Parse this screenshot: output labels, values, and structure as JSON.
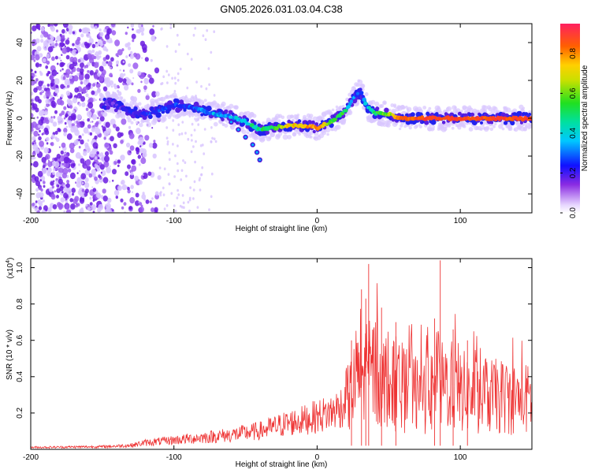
{
  "title": "GN05.2026.031.03.04.C38",
  "chart_data": [
    {
      "type": "heatmap",
      "xlabel": "Height of straight line (km)",
      "ylabel": "Frequency (Hz)",
      "xlim": [
        -200,
        150
      ],
      "ylim": [
        -50,
        50
      ],
      "xticks": [
        -200,
        -100,
        0,
        100
      ],
      "yticks": [
        -40,
        -20,
        0,
        20,
        40
      ],
      "colorbar": {
        "label": "Normalized spectral amplitude",
        "range": [
          0,
          0.95
        ],
        "ticks": [
          "0.0",
          "0.2",
          "0.4",
          "0.6",
          "0.8"
        ],
        "tick_values": [
          0,
          0.2,
          0.4,
          0.6,
          0.8
        ]
      },
      "ridge": {
        "x": [
          -145,
          -130,
          -120,
          -110,
          -100,
          -90,
          -80,
          -70,
          -60,
          -50,
          -40,
          -30,
          -20,
          -10,
          0,
          10,
          20,
          25,
          30,
          35,
          40,
          50,
          60,
          80,
          100,
          120,
          140,
          150
        ],
        "freq": [
          8,
          3,
          2,
          4,
          7,
          6,
          4,
          2,
          1,
          -2,
          -6,
          -5,
          -4,
          -4,
          -5,
          -2,
          4,
          10,
          15,
          6,
          3,
          2,
          0,
          0,
          0,
          0,
          0,
          0
        ],
        "amplitude": [
          0.2,
          0.25,
          0.3,
          0.3,
          0.3,
          0.3,
          0.35,
          0.4,
          0.4,
          0.45,
          0.5,
          0.55,
          0.7,
          0.75,
          0.8,
          0.6,
          0.5,
          0.35,
          0.3,
          0.4,
          0.55,
          0.6,
          0.85,
          0.9,
          0.9,
          0.88,
          0.9,
          0.9
        ]
      },
      "tail": {
        "x": [
          -60,
          -55,
          -50,
          -45,
          -42,
          -40
        ],
        "freq": [
          -2,
          -6,
          -10,
          -14,
          -18,
          -22
        ]
      }
    },
    {
      "type": "line",
      "xlabel": "Height of straight line (km)",
      "ylabel": "SNR (10 * v/v)",
      "yscale_label": "(x10",
      "yscale_exp": "4",
      "yscale_close": ")",
      "xlim": [
        -200,
        150
      ],
      "ylim": [
        0,
        1.05
      ],
      "xticks": [
        -200,
        -100,
        0,
        100
      ],
      "yticks": [
        0.2,
        0.4,
        0.6,
        0.8,
        1.0
      ],
      "ytick_labels": [
        "0.2",
        "0.4",
        "0.6",
        "0.8",
        "1.0"
      ],
      "series": [
        {
          "name": "SNR",
          "color": "#ee3333",
          "envelope_x": [
            -200,
            -150,
            -130,
            -120,
            -100,
            -80,
            -60,
            -40,
            -30,
            -20,
            -10,
            0,
            10,
            20,
            25,
            30,
            40,
            50,
            60,
            70,
            80,
            90,
            100,
            110,
            120,
            130,
            140,
            150
          ],
          "envelope_y": [
            0.015,
            0.02,
            0.03,
            0.05,
            0.07,
            0.09,
            0.11,
            0.14,
            0.17,
            0.2,
            0.22,
            0.25,
            0.28,
            0.35,
            0.45,
            0.55,
            0.6,
            0.5,
            0.45,
            0.42,
            0.42,
            0.5,
            0.45,
            0.4,
            0.4,
            0.4,
            0.38,
            0.38
          ],
          "spikes": [
            {
              "x": 36,
              "y": 1.02
            },
            {
              "x": 86,
              "y": 1.04
            },
            {
              "x": 31,
              "y": 0.88
            },
            {
              "x": 34,
              "y": 0.83
            },
            {
              "x": 45,
              "y": 0.78
            },
            {
              "x": 24,
              "y": 0.6
            },
            {
              "x": 55,
              "y": 0.7
            },
            {
              "x": 82,
              "y": 0.72
            },
            {
              "x": 95,
              "y": 0.66
            },
            {
              "x": 105,
              "y": 0.6
            }
          ]
        }
      ]
    }
  ]
}
